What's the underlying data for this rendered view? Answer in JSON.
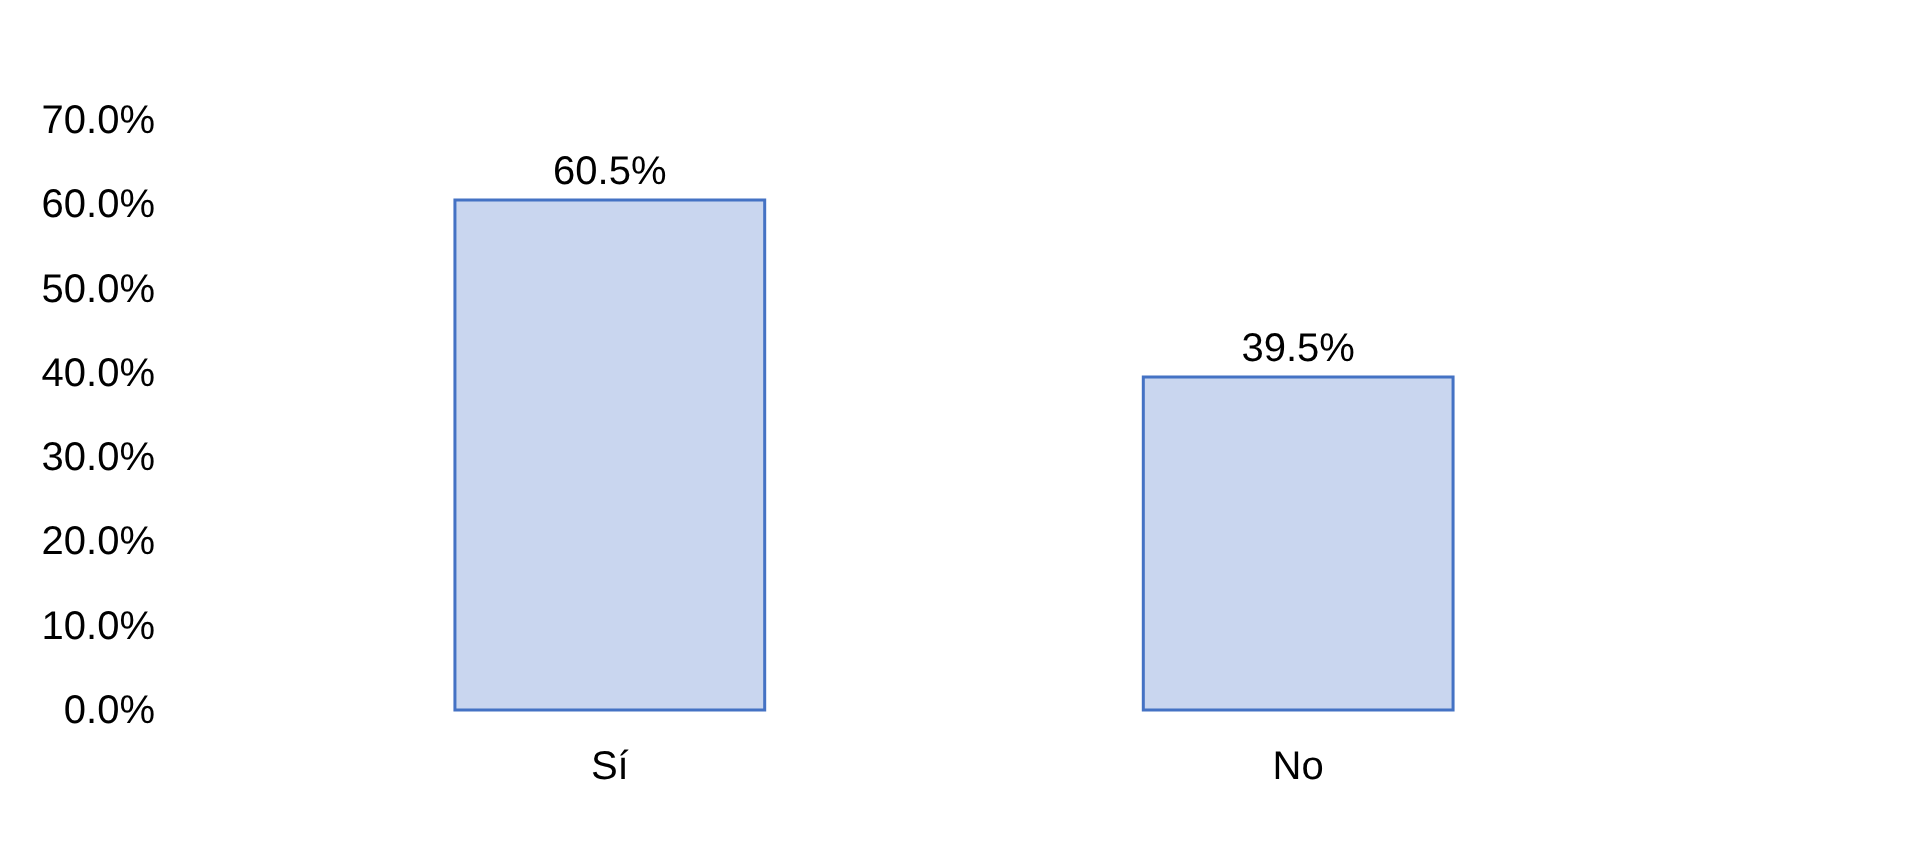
{
  "chart_data": {
    "type": "bar",
    "categories": [
      "Sí",
      "No"
    ],
    "values": [
      60.5,
      39.5
    ],
    "value_labels": [
      "60.5%",
      "39.5%"
    ],
    "color": "#c9d6ef",
    "ylim": [
      0,
      70
    ],
    "yticks": [
      {
        "value": 0,
        "label": "0.0%"
      },
      {
        "value": 10,
        "label": "10.0%"
      },
      {
        "value": 20,
        "label": "20.0%"
      },
      {
        "value": 30,
        "label": "30.0%"
      },
      {
        "value": 40,
        "label": "40.0%"
      },
      {
        "value": 50,
        "label": "50.0%"
      },
      {
        "value": 60,
        "label": "60.0%"
      },
      {
        "value": 70,
        "label": "70.0%"
      }
    ],
    "grid": false
  }
}
